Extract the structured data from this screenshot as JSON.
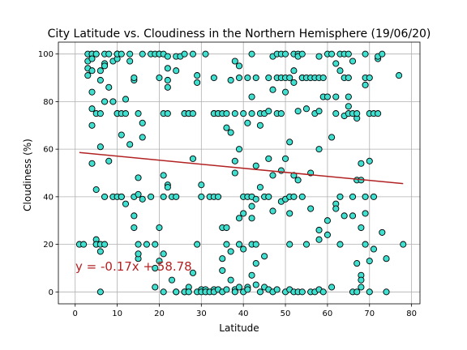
{
  "chart_data": {
    "type": "scatter",
    "title": "City Latitude vs. Cloudiness in the Northern Hemisphere (19/06/20)",
    "xlabel": "Latitude",
    "ylabel": "Cloudiness (%)",
    "xlim": [
      -4,
      82
    ],
    "ylim": [
      -5,
      105
    ],
    "xticks": [
      0,
      10,
      20,
      30,
      40,
      50,
      60,
      70,
      80
    ],
    "yticks": [
      0,
      20,
      40,
      60,
      80,
      100
    ],
    "grid": true,
    "marker_fill": "#40e0d0",
    "marker_edge": "#000000",
    "line_color": "#b22222",
    "regression": {
      "slope": -0.17,
      "intercept": 58.78,
      "x_range": [
        1,
        78
      ],
      "equation": "y = -0.17x + 58.78"
    },
    "points": [
      [
        1,
        20
      ],
      [
        2,
        20
      ],
      [
        3,
        94
      ],
      [
        3,
        100
      ],
      [
        3,
        91
      ],
      [
        3,
        97
      ],
      [
        4,
        100
      ],
      [
        4,
        100
      ],
      [
        4,
        70
      ],
      [
        4,
        54
      ],
      [
        4,
        77
      ],
      [
        4,
        98
      ],
      [
        4,
        84
      ],
      [
        4,
        93
      ],
      [
        5,
        100
      ],
      [
        5,
        43
      ],
      [
        5,
        20
      ],
      [
        5,
        22
      ],
      [
        5,
        100
      ],
      [
        5,
        75
      ],
      [
        5,
        20
      ],
      [
        6,
        89
      ],
      [
        6,
        61
      ],
      [
        6,
        20
      ],
      [
        6,
        17
      ],
      [
        6,
        0
      ],
      [
        6,
        93
      ],
      [
        6,
        75
      ],
      [
        7,
        100
      ],
      [
        7,
        80
      ],
      [
        7,
        96
      ],
      [
        7,
        40
      ],
      [
        7,
        20
      ],
      [
        7,
        95
      ],
      [
        8,
        86
      ],
      [
        8,
        55
      ],
      [
        8,
        100
      ],
      [
        9,
        80
      ],
      [
        9,
        40
      ],
      [
        9,
        97
      ],
      [
        10,
        100
      ],
      [
        10,
        100
      ],
      [
        10,
        98
      ],
      [
        10,
        75
      ],
      [
        10,
        40
      ],
      [
        10,
        100
      ],
      [
        10,
        75
      ],
      [
        11,
        66
      ],
      [
        11,
        75
      ],
      [
        11,
        100
      ],
      [
        11,
        40
      ],
      [
        11,
        40
      ],
      [
        12,
        81
      ],
      [
        12,
        37
      ],
      [
        12,
        75
      ],
      [
        13,
        62
      ],
      [
        13,
        97
      ],
      [
        13,
        100
      ],
      [
        14,
        40
      ],
      [
        14,
        89
      ],
      [
        14,
        90
      ],
      [
        14,
        32
      ],
      [
        14,
        27
      ],
      [
        15,
        41
      ],
      [
        15,
        75
      ],
      [
        15,
        48
      ],
      [
        15,
        20
      ],
      [
        15,
        14
      ],
      [
        15,
        16
      ],
      [
        16,
        100
      ],
      [
        16,
        39
      ],
      [
        16,
        71
      ],
      [
        16,
        65
      ],
      [
        17,
        20
      ],
      [
        18,
        100
      ],
      [
        18,
        40
      ],
      [
        19,
        10
      ],
      [
        19,
        2
      ],
      [
        19,
        100
      ],
      [
        19,
        20
      ],
      [
        20,
        90
      ],
      [
        20,
        100
      ],
      [
        20,
        100
      ],
      [
        20,
        27
      ],
      [
        20,
        13
      ],
      [
        21,
        100
      ],
      [
        21,
        49
      ],
      [
        21,
        75
      ],
      [
        21,
        40
      ],
      [
        21,
        0
      ],
      [
        21,
        16
      ],
      [
        22,
        99
      ],
      [
        22,
        75
      ],
      [
        22,
        94
      ],
      [
        22,
        86
      ],
      [
        22,
        89
      ],
      [
        22,
        45
      ],
      [
        22,
        44
      ],
      [
        23,
        40
      ],
      [
        23,
        5
      ],
      [
        24,
        93
      ],
      [
        24,
        99
      ],
      [
        24,
        40
      ],
      [
        24,
        0
      ],
      [
        24,
        0
      ],
      [
        25,
        99
      ],
      [
        26,
        75
      ],
      [
        26,
        100
      ],
      [
        26,
        75
      ],
      [
        26,
        0
      ],
      [
        26,
        0
      ],
      [
        27,
        75
      ],
      [
        27,
        75
      ],
      [
        27,
        2
      ],
      [
        27,
        0
      ],
      [
        28,
        100
      ],
      [
        28,
        56
      ],
      [
        28,
        75
      ],
      [
        28,
        8
      ],
      [
        29,
        91
      ],
      [
        29,
        88
      ],
      [
        29,
        20
      ],
      [
        29,
        0
      ],
      [
        30,
        45
      ],
      [
        30,
        40
      ],
      [
        30,
        1
      ],
      [
        30,
        0
      ],
      [
        31,
        100
      ],
      [
        31,
        1
      ],
      [
        31,
        0
      ],
      [
        32,
        40
      ],
      [
        32,
        0
      ],
      [
        33,
        90
      ],
      [
        33,
        75
      ],
      [
        33,
        75
      ],
      [
        33,
        40
      ],
      [
        33,
        1
      ],
      [
        33,
        0
      ],
      [
        34,
        40
      ],
      [
        34,
        75
      ],
      [
        34,
        75
      ],
      [
        34,
        1
      ],
      [
        35,
        75
      ],
      [
        35,
        14
      ],
      [
        35,
        27
      ],
      [
        35,
        9
      ],
      [
        35,
        0
      ],
      [
        36,
        69
      ],
      [
        36,
        75
      ],
      [
        36,
        27
      ],
      [
        36,
        20
      ],
      [
        36,
        1
      ],
      [
        37,
        67
      ],
      [
        37,
        89
      ],
      [
        37,
        17
      ],
      [
        37,
        5
      ],
      [
        38,
        50
      ],
      [
        38,
        75
      ],
      [
        38,
        55
      ],
      [
        38,
        97
      ],
      [
        38,
        1
      ],
      [
        38,
        0
      ],
      [
        39,
        95
      ],
      [
        39,
        90
      ],
      [
        39,
        60
      ],
      [
        39,
        31
      ],
      [
        39,
        20
      ],
      [
        39,
        2
      ],
      [
        40,
        75
      ],
      [
        40,
        40
      ],
      [
        40,
        33
      ],
      [
        40,
        18
      ],
      [
        40,
        0
      ],
      [
        41,
        90
      ],
      [
        41,
        71
      ],
      [
        41,
        40
      ],
      [
        41,
        2
      ],
      [
        41,
        1
      ],
      [
        42,
        100
      ],
      [
        42,
        82
      ],
      [
        42,
        75
      ],
      [
        42,
        40
      ],
      [
        42,
        36
      ],
      [
        42,
        31
      ],
      [
        42,
        20
      ],
      [
        42,
        7
      ],
      [
        43,
        90
      ],
      [
        43,
        53
      ],
      [
        43,
        39
      ],
      [
        43,
        20
      ],
      [
        43,
        12
      ],
      [
        43,
        3
      ],
      [
        44,
        75
      ],
      [
        44,
        70
      ],
      [
        44,
        44
      ],
      [
        44,
        0
      ],
      [
        45,
        75
      ],
      [
        45,
        40
      ],
      [
        45,
        15
      ],
      [
        45,
        2
      ],
      [
        46,
        90
      ],
      [
        46,
        56
      ],
      [
        46,
        76
      ],
      [
        46,
        40
      ],
      [
        46,
        1
      ],
      [
        47,
        99
      ],
      [
        47,
        85
      ],
      [
        47,
        49
      ],
      [
        47,
        34
      ],
      [
        47,
        0
      ],
      [
        48,
        100
      ],
      [
        48,
        90
      ],
      [
        48,
        75
      ],
      [
        48,
        1
      ],
      [
        49,
        100
      ],
      [
        49,
        90
      ],
      [
        49,
        75
      ],
      [
        49,
        51
      ],
      [
        49,
        38
      ],
      [
        50,
        100
      ],
      [
        50,
        90
      ],
      [
        50,
        84
      ],
      [
        50,
        56
      ],
      [
        50,
        39
      ],
      [
        50,
        0
      ],
      [
        51,
        90
      ],
      [
        51,
        63
      ],
      [
        51,
        40
      ],
      [
        51,
        33
      ],
      [
        51,
        20
      ],
      [
        51,
        1
      ],
      [
        52,
        100
      ],
      [
        52,
        93
      ],
      [
        52,
        88
      ],
      [
        52,
        49
      ],
      [
        52,
        40
      ],
      [
        52,
        0
      ],
      [
        53,
        100
      ],
      [
        53,
        99
      ],
      [
        53,
        76
      ],
      [
        53,
        47
      ],
      [
        53,
        0
      ],
      [
        54,
        100
      ],
      [
        54,
        90
      ],
      [
        54,
        90
      ],
      [
        54,
        40
      ],
      [
        54,
        0
      ],
      [
        55,
        90
      ],
      [
        55,
        77
      ],
      [
        55,
        20
      ],
      [
        56,
        90
      ],
      [
        56,
        50
      ],
      [
        56,
        35
      ],
      [
        56,
        0
      ],
      [
        57,
        90
      ],
      [
        57,
        75
      ],
      [
        57,
        0
      ],
      [
        58,
        99
      ],
      [
        58,
        90
      ],
      [
        58,
        76
      ],
      [
        58,
        60
      ],
      [
        58,
        26
      ],
      [
        58,
        22
      ],
      [
        58,
        1
      ],
      [
        59,
        90
      ],
      [
        59,
        82
      ],
      [
        59,
        0
      ],
      [
        60,
        100
      ],
      [
        60,
        82
      ],
      [
        60,
        30
      ],
      [
        60,
        24
      ],
      [
        61,
        100
      ],
      [
        61,
        65
      ],
      [
        61,
        2
      ],
      [
        62,
        96
      ],
      [
        62,
        82
      ],
      [
        62,
        75
      ],
      [
        62,
        37
      ],
      [
        62,
        35
      ],
      [
        63,
        93
      ],
      [
        63,
        100
      ],
      [
        63,
        40
      ],
      [
        63,
        20
      ],
      [
        64,
        100
      ],
      [
        64,
        90
      ],
      [
        64,
        74
      ],
      [
        64,
        32
      ],
      [
        65,
        100
      ],
      [
        65,
        82
      ],
      [
        65,
        90
      ],
      [
        65,
        78
      ],
      [
        65,
        75
      ],
      [
        66,
        97
      ],
      [
        66,
        75
      ],
      [
        66,
        40
      ],
      [
        66,
        32
      ],
      [
        66,
        0
      ],
      [
        67,
        73
      ],
      [
        67,
        75
      ],
      [
        67,
        47
      ],
      [
        67,
        12
      ],
      [
        67,
        0
      ],
      [
        68,
        54
      ],
      [
        68,
        47
      ],
      [
        68,
        27
      ],
      [
        68,
        7
      ],
      [
        68,
        5
      ],
      [
        68,
        2
      ],
      [
        69,
        100
      ],
      [
        69,
        90
      ],
      [
        69,
        87
      ],
      [
        69,
        40
      ],
      [
        69,
        33
      ],
      [
        69,
        20
      ],
      [
        70,
        90
      ],
      [
        70,
        75
      ],
      [
        70,
        55
      ],
      [
        70,
        13
      ],
      [
        70,
        0
      ],
      [
        71,
        75
      ],
      [
        71,
        40
      ],
      [
        71,
        18
      ],
      [
        72,
        98
      ],
      [
        72,
        99
      ],
      [
        72,
        75
      ],
      [
        73,
        100
      ],
      [
        73,
        25
      ],
      [
        74,
        14
      ],
      [
        74,
        0
      ],
      [
        77,
        91
      ],
      [
        78,
        20
      ]
    ]
  }
}
